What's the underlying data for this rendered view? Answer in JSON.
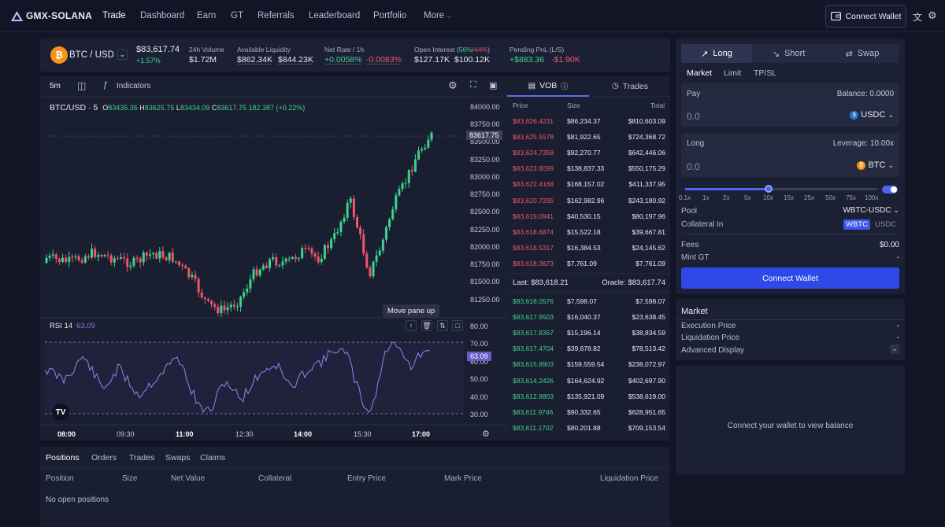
{
  "nav": {
    "brand": "GMX-SOLANA",
    "items": [
      "Trade",
      "Dashboard",
      "Earn",
      "GT",
      "Referrals",
      "Leaderboard",
      "Portfolio",
      "More"
    ],
    "connect": "Connect Wallet"
  },
  "ticker": {
    "pair": "BTC / USD",
    "price": "$83,617.74",
    "change": "+1.57%",
    "vol_label": "24h Volume",
    "vol_val": "$1.72M",
    "liq_label": "Available Liquidity",
    "liq_long": "$862.34K",
    "liq_short": "$844.23K",
    "rate_label": "Net Rate / 1h",
    "rate_long": "+0.0058%",
    "rate_short": "-0.0083%",
    "oi_label_a": "Open Interest (",
    "oi_long_pct": "56%",
    "oi_sep": "/",
    "oi_short_pct": "44%",
    "oi_label_b": ")",
    "oi_long": "$127.17K",
    "oi_short": "$100.12K",
    "pnl_label": "Pending PnL (L/S)",
    "pnl_long": "+$883.36",
    "pnl_short": "-$1.90K"
  },
  "chart": {
    "interval": "5m",
    "indicators": "Indicators",
    "symbol": "BTC/USD · 5",
    "o_label": "O",
    "o": "83435.36",
    "h_label": "H",
    "h": "83625.75",
    "l_label": "L",
    "l": "83434.09",
    "c_label": "C",
    "c": "83617.75",
    "delta": "182.387 (+0.22%)",
    "current": "83617.75",
    "price_ticks": [
      "84000.00",
      "83750.00",
      "83500.00",
      "83250.00",
      "83000.00",
      "82750.00",
      "82500.00",
      "82250.00",
      "82000.00",
      "81750.00",
      "81500.00",
      "81250.00"
    ],
    "time_ticks": [
      "08:00",
      "09:30",
      "11:00",
      "12:30",
      "14:00",
      "15:30",
      "17:00"
    ],
    "tooltip": "Move pane up",
    "rsi_label": "RSI 14",
    "rsi_val": "63.09",
    "rsi_ticks": [
      "80.00",
      "70.00",
      "60.00",
      "50.00",
      "40.00",
      "30.00"
    ]
  },
  "book": {
    "tab_vob": "VOB",
    "tab_trades": "Trades",
    "h_price": "Price",
    "h_size": "Size",
    "h_total": "Total",
    "asks": [
      [
        "$83,626.4231",
        "$86,234.37",
        "$810,603.09"
      ],
      [
        "$83,625.5578",
        "$81,922.65",
        "$724,368.72"
      ],
      [
        "$83,624.7358",
        "$92,270.77",
        "$642,446.06"
      ],
      [
        "$83,623.8099",
        "$138,837.33",
        "$550,175.29"
      ],
      [
        "$83,622.4168",
        "$168,157.02",
        "$411,337.95"
      ],
      [
        "$83,620.7295",
        "$162,982.96",
        "$243,180.92"
      ],
      [
        "$83,619.0941",
        "$40,530.15",
        "$80,197.96"
      ],
      [
        "$83,618.6874",
        "$15,522.18",
        "$39,667.81"
      ],
      [
        "$83,618.5317",
        "$16,384.53",
        "$24,145.62"
      ],
      [
        "$83,618.3673",
        "$7,761.09",
        "$7,761.09"
      ]
    ],
    "last": "Last: $83,618.21",
    "oracle": "Oracle: $83,617.74",
    "bids": [
      [
        "$83,618.0576",
        "$7,598.07",
        "$7,598.07"
      ],
      [
        "$83,617.9503",
        "$16,040.37",
        "$23,638.45"
      ],
      [
        "$83,617.8367",
        "$15,196.14",
        "$38,834.59"
      ],
      [
        "$83,617.4704",
        "$39,678.82",
        "$78,513.42"
      ],
      [
        "$83,615.8903",
        "$159,559.54",
        "$238,072.97"
      ],
      [
        "$83,614.2426",
        "$164,624.92",
        "$402,697.90"
      ],
      [
        "$83,612.8803",
        "$135,921.09",
        "$538,619.00"
      ],
      [
        "$83,611.9746",
        "$90,332.65",
        "$628,951.65"
      ],
      [
        "$83,611.1702",
        "$80,201.88",
        "$709,153.54"
      ]
    ]
  },
  "positions": {
    "tabs": [
      "Positions",
      "Orders",
      "Trades",
      "Swaps",
      "Claims"
    ],
    "headers": [
      "Position",
      "Size",
      "Net Value",
      "Collateral",
      "Entry Price",
      "Mark Price",
      "Liquidation Price"
    ],
    "empty": "No open positions"
  },
  "trade": {
    "tabs": [
      "Long",
      "Short",
      "Swap"
    ],
    "subtabs": [
      "Market",
      "Limit",
      "TP/SL"
    ],
    "pay_label": "Pay",
    "balance": "Balance: 0.0000",
    "pay_val": "0.0",
    "pay_token": "USDC",
    "long_label": "Long",
    "leverage": "Leverage: 10.00x",
    "long_val": "0.0",
    "long_token": "BTC",
    "lev_marks": [
      "0.1x",
      "1x",
      "2x",
      "5x",
      "10x",
      "15x",
      "25x",
      "50x",
      "75x",
      "100x"
    ],
    "pool_label": "Pool",
    "pool_val": "WBTC-USDC",
    "coll_label": "Collateral In",
    "coll_a": "WBTC",
    "coll_b": "USDC",
    "fees_label": "Fees",
    "fees_val": "$0.00",
    "mint_label": "Mint GT",
    "mint_val": "-",
    "connect": "Connect Wallet"
  },
  "market": {
    "title": "Market",
    "rows": [
      [
        "Execution Price",
        "-"
      ],
      [
        "Liquidation Price",
        "-"
      ],
      [
        "Advanced Display",
        ""
      ]
    ]
  },
  "wallet_msg": "Connect your wallet to view balance"
}
